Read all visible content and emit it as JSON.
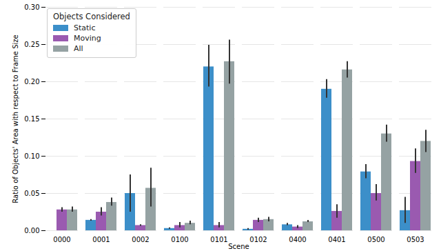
{
  "chart_data": {
    "type": "bar",
    "categories": [
      "0000",
      "0001",
      "0002",
      "0100",
      "0101",
      "0102",
      "0400",
      "0401",
      "0500",
      "0503"
    ],
    "x_label": "Scene",
    "y_label": "Ratio of Objects' Area with respect to Frame Size",
    "legend_title": "Objects Considered",
    "legend": "upper left",
    "grid": true,
    "ylim": [
      0,
      0.3
    ],
    "yticks": [
      {
        "value": 0,
        "label": "0.00"
      },
      {
        "value": 0.05,
        "label": "0.05"
      },
      {
        "value": 0.1,
        "label": "0.10"
      },
      {
        "value": 0.15,
        "label": "0.15"
      },
      {
        "value": 0.2,
        "label": "0.20"
      },
      {
        "value": 0.25,
        "label": "0.25"
      },
      {
        "value": 0.3,
        "label": "0.30"
      }
    ],
    "series": [
      {
        "name": "Static",
        "color": "#3c8fc9",
        "values": [
          0,
          0.014,
          0.05,
          0.003,
          0.22,
          0.002,
          0.008,
          0.19,
          0.079,
          0.027
        ],
        "error_low": [
          null,
          0.013,
          0.025,
          0.002,
          0.193,
          0.001,
          0.007,
          0.178,
          0.07,
          0.01
        ],
        "error_high": [
          null,
          0.015,
          0.075,
          0.004,
          0.249,
          0.003,
          0.01,
          0.203,
          0.089,
          0.045
        ]
      },
      {
        "name": "Moving",
        "color": "#9a5ab0",
        "values": [
          0.028,
          0.025,
          0.007,
          0.007,
          0.007,
          0.014,
          0.005,
          0.026,
          0.05,
          0.093
        ],
        "error_low": [
          0.025,
          0.02,
          0.006,
          0.004,
          0.004,
          0.011,
          0.003,
          0.017,
          0.04,
          0.077
        ],
        "error_high": [
          0.031,
          0.031,
          0.008,
          0.011,
          0.011,
          0.017,
          0.007,
          0.035,
          0.062,
          0.11
        ]
      },
      {
        "name": "All",
        "color": "#95a2a3",
        "values": [
          0.028,
          0.038,
          0.057,
          0.01,
          0.227,
          0.015,
          0.012,
          0.216,
          0.13,
          0.12
        ],
        "error_low": [
          0.025,
          0.033,
          0.032,
          0.008,
          0.197,
          0.012,
          0.011,
          0.205,
          0.119,
          0.105
        ],
        "error_high": [
          0.032,
          0.044,
          0.084,
          0.013,
          0.256,
          0.018,
          0.014,
          0.227,
          0.142,
          0.135
        ]
      }
    ]
  }
}
